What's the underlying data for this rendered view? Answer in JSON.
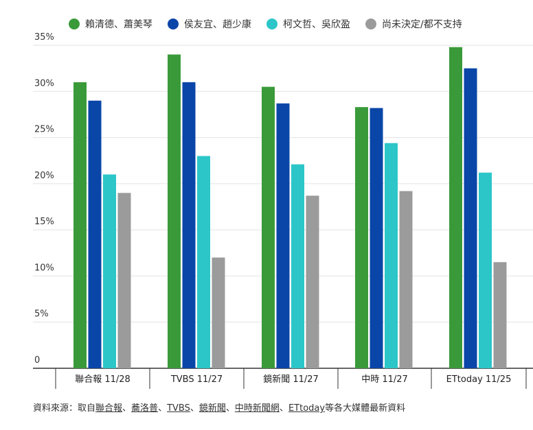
{
  "chart_data": {
    "type": "bar",
    "categories": [
      "聯合報 11/28",
      "TVBS 11/27",
      "鏡新聞 11/27",
      "中時 11/27",
      "ETtoday 11/25"
    ],
    "series": [
      {
        "name": "賴清德、蕭美琴",
        "color": "#3a9a3a",
        "values": [
          31,
          34,
          30.5,
          28.3,
          34.8
        ]
      },
      {
        "name": "侯友宜、趙少康",
        "color": "#0a46a8",
        "values": [
          29,
          31,
          28.7,
          28.2,
          32.5
        ]
      },
      {
        "name": "柯文哲、吳欣盈",
        "color": "#2cc6c8",
        "values": [
          21,
          23,
          22.1,
          24.4,
          21.2
        ]
      },
      {
        "name": "尚未決定/都不支持",
        "color": "#9b9b9b",
        "values": [
          19,
          12,
          18.7,
          19.2,
          11.5
        ]
      }
    ],
    "y_ticks": [
      "0",
      "5%",
      "10%",
      "15%",
      "20%",
      "25%",
      "30%",
      "35%"
    ],
    "ylim": [
      0,
      35
    ],
    "grid": true,
    "legend": "top"
  },
  "source": {
    "prefix": "資料來源：取自",
    "sep": "、",
    "links": [
      "聯合報",
      "蕎洛普",
      "TVBS",
      "鏡新聞",
      "中時新聞網",
      "ETtoday"
    ],
    "suffix": "等各大媒體最新資料"
  }
}
